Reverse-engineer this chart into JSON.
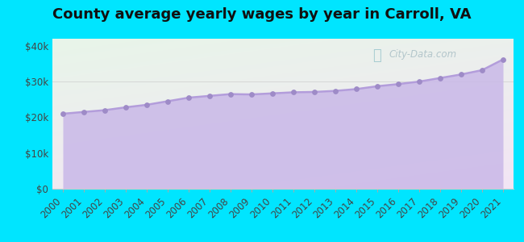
{
  "title": "County average yearly wages by year in Carroll, VA",
  "years": [
    2000,
    2001,
    2002,
    2003,
    2004,
    2005,
    2006,
    2007,
    2008,
    2009,
    2010,
    2011,
    2012,
    2013,
    2014,
    2015,
    2016,
    2017,
    2018,
    2019,
    2020,
    2021
  ],
  "wages": [
    21000,
    21500,
    22000,
    22800,
    23500,
    24500,
    25500,
    26000,
    26500,
    26400,
    26700,
    27000,
    27100,
    27400,
    27900,
    28700,
    29300,
    30000,
    31000,
    32000,
    33200,
    36200
  ],
  "line_color": "#b39ddb",
  "fill_color": "#c9b8e8",
  "fill_alpha": 0.85,
  "marker_color": "#9e8bc7",
  "marker_size": 15,
  "bg_outer": "#00e5ff",
  "bg_chart_grad_top": "#e8f5e9",
  "bg_chart_grad_bottom": "#f3e5f5",
  "ylim": [
    0,
    42000
  ],
  "yticks": [
    0,
    10000,
    20000,
    30000,
    40000
  ],
  "ytick_labels": [
    "$0",
    "$10k",
    "$20k",
    "$30k",
    "$40k"
  ],
  "watermark_text": "City-Data.com",
  "title_fontsize": 13,
  "tick_fontsize": 8.5,
  "linewidth": 1.8
}
